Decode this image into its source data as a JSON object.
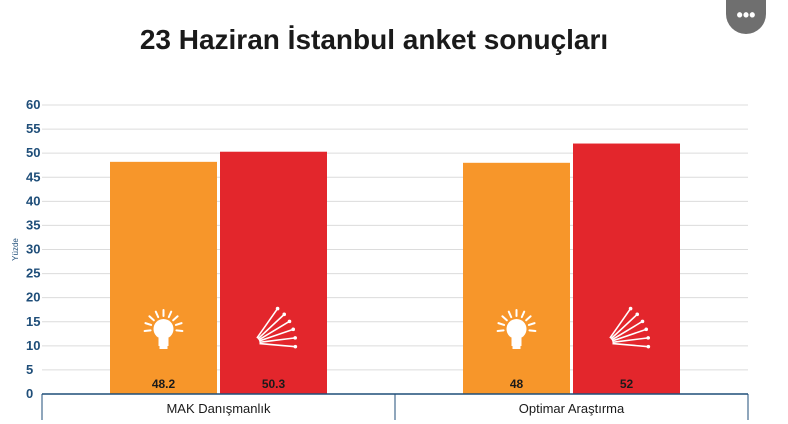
{
  "title": "23 Haziran İstanbul anket sonuçları",
  "more_button_label": "•••",
  "chart_data": {
    "type": "bar",
    "title": "23 Haziran İstanbul anket sonuçları",
    "ylabel": "Yüzde",
    "xlabel": "",
    "ylim": [
      0,
      60
    ],
    "yticks": [
      0,
      5,
      10,
      15,
      20,
      25,
      30,
      35,
      40,
      45,
      50,
      55,
      60
    ],
    "grid": true,
    "categories": [
      "MAK Danışmanlık",
      "Optimar Araştırma"
    ],
    "series": [
      {
        "color": "#f7962a",
        "icon": "ak-parti-lightbulb-icon",
        "values": [
          48.2,
          48
        ]
      },
      {
        "color": "#e3262c",
        "icon": "chp-six-arrows-icon",
        "values": [
          50.3,
          52
        ]
      }
    ],
    "data_labels": [
      [
        "48.2",
        "48"
      ],
      [
        "50.3",
        "52"
      ]
    ]
  }
}
